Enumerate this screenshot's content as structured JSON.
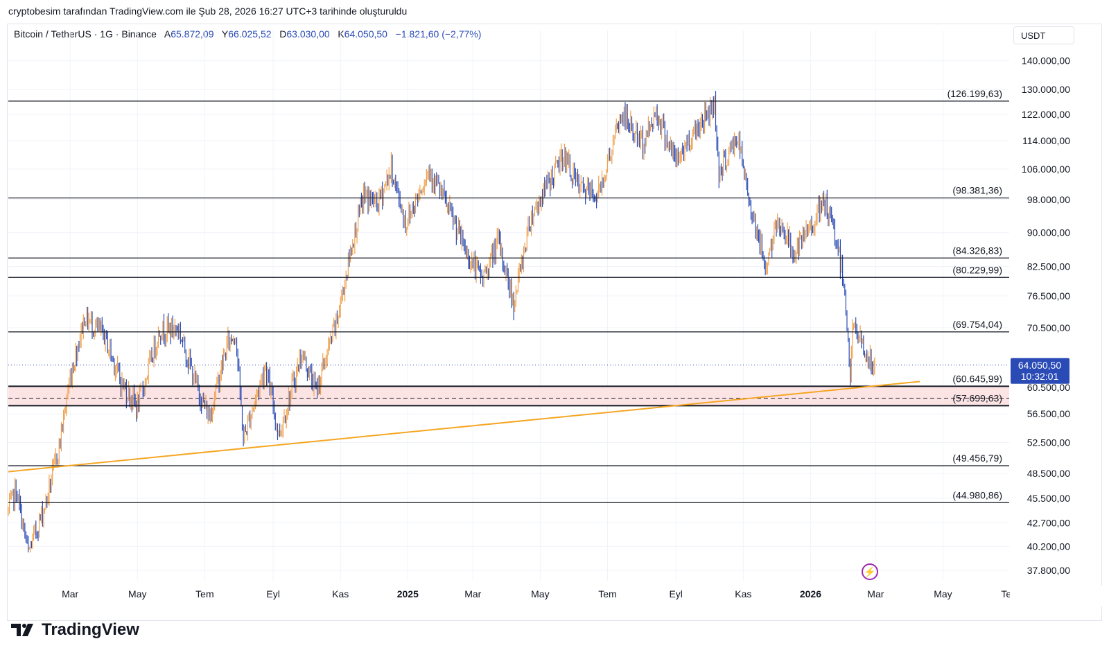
{
  "caption": "cryptobesim tarafından TradingView.com ile Şub 28, 2026 16:27 UTC+3 tarihinde oluşturuldu",
  "header": {
    "symbol": "Bitcoin / TetherUS · 1G · Binance",
    "open_label": "A",
    "open": "65.872,09",
    "high_label": "Y",
    "high": "66.025,52",
    "low_label": "D",
    "low": "63.030,00",
    "close_label": "K",
    "close": "64.050,50",
    "change": "−1.821,60 (−2,77%)"
  },
  "currency": "USDT",
  "brand": "TradingView",
  "icons": {
    "logo": "tradingview-logo-icon",
    "event": "lightning-event-icon"
  },
  "colors": {
    "up": "#f0a04b",
    "down": "#2a4bb6",
    "trendline": "#f5a623",
    "zone": "#fde4e4",
    "price_label": "#2a4bb6",
    "event": "#9c27b0"
  },
  "chart_data": {
    "type": "candlestick",
    "title": "Bitcoin / TetherUS · 1G · Binance",
    "y_axis": {
      "scale": "log",
      "range": [
        36800,
        146000
      ],
      "ticks": [
        "140.000,00",
        "130.000,00",
        "122.000,00",
        "114.000,00",
        "106.000,00",
        "98.000,00",
        "90.000,00",
        "82.500,00",
        "76.500,00",
        "70.500,00",
        "60.500,00",
        "56.500,00",
        "52.500,00",
        "48.500,00",
        "45.500,00",
        "42.700,00",
        "40.200,00",
        "37.800,00"
      ],
      "tick_values": [
        140000,
        130000,
        122000,
        114000,
        106000,
        98000,
        90000,
        82500,
        76500,
        70500,
        60500,
        56500,
        52500,
        48500,
        45500,
        42700,
        40200,
        37800
      ]
    },
    "x_axis": {
      "range": [
        "2024-01-05",
        "2026-06-30"
      ],
      "ticks": [
        {
          "date": "2024-03-01",
          "label": "Mar",
          "bold": false
        },
        {
          "date": "2024-05-01",
          "label": "May",
          "bold": false
        },
        {
          "date": "2024-07-01",
          "label": "Tem",
          "bold": false
        },
        {
          "date": "2024-09-01",
          "label": "Eyl",
          "bold": false
        },
        {
          "date": "2024-11-01",
          "label": "Kas",
          "bold": false
        },
        {
          "date": "2025-01-01",
          "label": "2025",
          "bold": true
        },
        {
          "date": "2025-03-01",
          "label": "Mar",
          "bold": false
        },
        {
          "date": "2025-05-01",
          "label": "May",
          "bold": false
        },
        {
          "date": "2025-07-01",
          "label": "Tem",
          "bold": false
        },
        {
          "date": "2025-09-01",
          "label": "Eyl",
          "bold": false
        },
        {
          "date": "2025-11-01",
          "label": "Kas",
          "bold": false
        },
        {
          "date": "2026-01-01",
          "label": "2026",
          "bold": true
        },
        {
          "date": "2026-03-01",
          "label": "Mar",
          "bold": false
        },
        {
          "date": "2026-05-01",
          "label": "May",
          "bold": false
        },
        {
          "date": "2026-07-01",
          "label": "Tem",
          "bold": false
        }
      ]
    },
    "price_path": [
      {
        "date": "2024-01-05",
        "price": 44000
      },
      {
        "date": "2024-01-12",
        "price": 46500
      },
      {
        "date": "2024-01-23",
        "price": 39500
      },
      {
        "date": "2024-02-08",
        "price": 45000
      },
      {
        "date": "2024-02-20",
        "price": 52000
      },
      {
        "date": "2024-03-01",
        "price": 62000
      },
      {
        "date": "2024-03-14",
        "price": 72500
      },
      {
        "date": "2024-04-01",
        "price": 69000
      },
      {
        "date": "2024-04-17",
        "price": 61000
      },
      {
        "date": "2024-05-01",
        "price": 57500
      },
      {
        "date": "2024-05-21",
        "price": 70000
      },
      {
        "date": "2024-06-07",
        "price": 70500
      },
      {
        "date": "2024-06-24",
        "price": 60500
      },
      {
        "date": "2024-07-05",
        "price": 56000
      },
      {
        "date": "2024-07-22",
        "price": 68000
      },
      {
        "date": "2024-07-29",
        "price": 69500
      },
      {
        "date": "2024-08-05",
        "price": 53000
      },
      {
        "date": "2024-08-25",
        "price": 64000
      },
      {
        "date": "2024-09-06",
        "price": 53500
      },
      {
        "date": "2024-09-27",
        "price": 66000
      },
      {
        "date": "2024-10-10",
        "price": 60000
      },
      {
        "date": "2024-10-29",
        "price": 72000
      },
      {
        "date": "2024-11-12",
        "price": 88000
      },
      {
        "date": "2024-11-22",
        "price": 99000
      },
      {
        "date": "2024-12-05",
        "price": 97000
      },
      {
        "date": "2024-12-17",
        "price": 106000
      },
      {
        "date": "2024-12-30",
        "price": 92000
      },
      {
        "date": "2025-01-20",
        "price": 106000
      },
      {
        "date": "2025-02-03",
        "price": 98000
      },
      {
        "date": "2025-02-26",
        "price": 84000
      },
      {
        "date": "2025-03-10",
        "price": 80000
      },
      {
        "date": "2025-03-24",
        "price": 88000
      },
      {
        "date": "2025-04-07",
        "price": 75000
      },
      {
        "date": "2025-04-22",
        "price": 93500
      },
      {
        "date": "2025-05-22",
        "price": 110000
      },
      {
        "date": "2025-06-05",
        "price": 101000
      },
      {
        "date": "2025-06-22",
        "price": 99000
      },
      {
        "date": "2025-07-14",
        "price": 122000
      },
      {
        "date": "2025-08-02",
        "price": 113000
      },
      {
        "date": "2025-08-14",
        "price": 123000
      },
      {
        "date": "2025-09-01",
        "price": 108000
      },
      {
        "date": "2025-09-18",
        "price": 117000
      },
      {
        "date": "2025-10-06",
        "price": 125500
      },
      {
        "date": "2025-10-10",
        "price": 105000
      },
      {
        "date": "2025-10-27",
        "price": 115000
      },
      {
        "date": "2025-11-04",
        "price": 101000
      },
      {
        "date": "2025-11-21",
        "price": 82500
      },
      {
        "date": "2025-12-03",
        "price": 93000
      },
      {
        "date": "2025-12-18",
        "price": 85000
      },
      {
        "date": "2026-01-06",
        "price": 94000
      },
      {
        "date": "2026-01-14",
        "price": 97000
      },
      {
        "date": "2026-01-25",
        "price": 88000
      },
      {
        "date": "2026-02-01",
        "price": 78000
      },
      {
        "date": "2026-02-06",
        "price": 62000
      },
      {
        "date": "2026-02-08",
        "price": 70500
      },
      {
        "date": "2026-02-16",
        "price": 68000
      },
      {
        "date": "2026-02-23",
        "price": 64500
      },
      {
        "date": "2026-02-28",
        "price": 64050
      }
    ],
    "horizontal_levels": [
      {
        "price": 126199.63,
        "label": "(126.199,63)"
      },
      {
        "price": 98381.36,
        "label": "(98.381,36)"
      },
      {
        "price": 84326.83,
        "label": "(84.326,83)"
      },
      {
        "price": 80229.99,
        "label": "(80.229,99)"
      },
      {
        "price": 69754.04,
        "label": "(69.754,04)"
      },
      {
        "price": 60645.99,
        "label": "(60.645,99)"
      },
      {
        "price": 57699.63,
        "label": "(57.699,63)"
      },
      {
        "price": 49456.79,
        "label": "(49.456,79)"
      },
      {
        "price": 44980.86,
        "label": "(44.980,86)"
      }
    ],
    "zone": {
      "from": 57699.63,
      "to": 60645.99
    },
    "dashed_level": 58800,
    "trendline": [
      {
        "date": "2024-01-05",
        "price": 48700
      },
      {
        "date": "2026-04-10",
        "price": 61400
      }
    ],
    "last_price": {
      "price": 64050.5,
      "label": "64.050,50",
      "countdown": "10:32:01"
    }
  }
}
